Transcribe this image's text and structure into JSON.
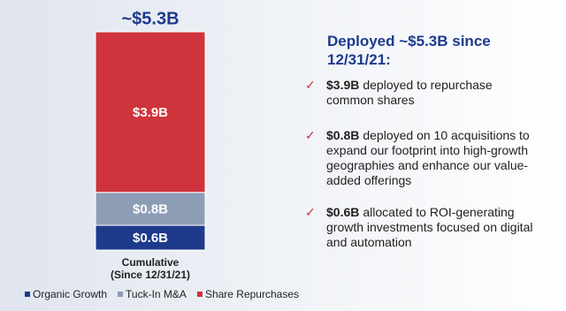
{
  "chart_data": {
    "type": "bar",
    "stacked": true,
    "total_label": "~$5.3B",
    "categories": [
      "Cumulative\n(Since 12/31/21)"
    ],
    "series": [
      {
        "name": "Organic Growth",
        "color": "#1d3a8c",
        "values": [
          0.6
        ],
        "value_labels": [
          "$0.6B"
        ]
      },
      {
        "name": "Tuck-In M&A",
        "color": "#8d9db6",
        "values": [
          0.8
        ],
        "value_labels": [
          "$0.8B"
        ]
      },
      {
        "name": "Share Repurchases",
        "color": "#cf333b",
        "values": [
          3.9
        ],
        "value_labels": [
          "$3.9B"
        ]
      }
    ]
  },
  "heading": "Deployed ~$5.3B since 12/31/21:",
  "bullets": [
    {
      "bold": "$3.9B",
      "text": "deployed to repurchase common shares"
    },
    {
      "bold": "$0.8B",
      "text": "deployed on 10 acquisitions to expand our footprint into high-growth geographies and enhance our value-added offerings"
    },
    {
      "bold": "$0.6B",
      "text": "allocated to ROI-generating growth investments focused on digital and automation"
    }
  ]
}
